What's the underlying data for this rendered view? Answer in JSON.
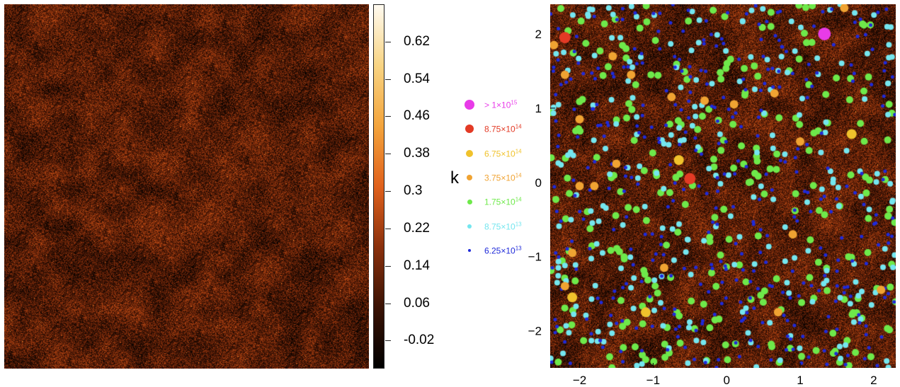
{
  "colorbar": {
    "ticks": [
      "0.62",
      "0.54",
      "0.46",
      "0.38",
      "0.3",
      "0.22",
      "0.14",
      "0.06",
      "-0.02"
    ],
    "tick_values": [
      0.62,
      0.54,
      0.46,
      0.38,
      0.3,
      0.22,
      0.14,
      0.06,
      -0.02
    ],
    "range": [
      -0.08,
      0.7
    ],
    "colors": [
      "#000000",
      "#3a1204",
      "#8a300c",
      "#e0611c",
      "#f3a43c",
      "#f8d483",
      "#fffaf0"
    ]
  },
  "k_label": "k",
  "legend": {
    "items": [
      {
        "label_base": "> 1×10",
        "exp": "15",
        "color": "#e83be8",
        "size": "large"
      },
      {
        "label_base": "8.75×10",
        "exp": "14",
        "color": "#e33a25",
        "size": "medium-large"
      },
      {
        "label_base": "6.75×10",
        "exp": "14",
        "color": "#f0c22c",
        "size": "medium"
      },
      {
        "label_base": "3.75×10",
        "exp": "14",
        "color": "#f0a332",
        "size": "medium-small"
      },
      {
        "label_base": "1.75×10",
        "exp": "14",
        "color": "#6ee94a",
        "size": "small"
      },
      {
        "label_base": "8.75×10",
        "exp": "13",
        "color": "#74e6ef",
        "size": "smaller"
      },
      {
        "label_base": "6.25×10",
        "exp": "13",
        "color": "#1f2ad9",
        "size": "tiny"
      }
    ]
  },
  "chart_data": [
    {
      "type": "heatmap",
      "title": "",
      "colormap": "black-orange-white",
      "colorbar_label": "k",
      "value_range": [
        -0.08,
        0.7
      ]
    },
    {
      "type": "scatter",
      "title": "",
      "xlabel": "",
      "ylabel": "",
      "xlim": [
        -2.4,
        2.3
      ],
      "ylim": [
        -2.5,
        2.4
      ],
      "xticks": [
        -2,
        -1,
        0,
        1,
        2
      ],
      "yticks": [
        2,
        1,
        0,
        -1,
        -2
      ],
      "xtick_labels": [
        "−2",
        "−1",
        "0",
        "1",
        "2"
      ],
      "ytick_labels": [
        "2",
        "1",
        "0",
        "−1",
        "−2"
      ],
      "background": "convergence map (same colormap as left panel)",
      "series": [
        {
          "name": "> 1×10^15",
          "points": [
            [
              1.33,
              2.0
            ]
          ]
        },
        {
          "name": "8.75×10^14",
          "points": [
            [
              -2.2,
              1.95
            ],
            [
              -0.5,
              0.05
            ]
          ]
        },
        {
          "name": "6.75×10^14",
          "points": [
            [
              1.7,
              0.65
            ],
            [
              -0.65,
              0.3
            ],
            [
              -2.1,
              -1.55
            ],
            [
              -1.1,
              -1.75
            ]
          ]
        },
        {
          "name": "3.75×10^14",
          "points": [
            [
              -2.35,
              1.85
            ],
            [
              -1.55,
              1.7
            ],
            [
              -2.2,
              1.45
            ],
            [
              -1.3,
              1.45
            ],
            [
              -0.75,
              1.15
            ],
            [
              0.1,
              1.05
            ],
            [
              0.65,
              1.2
            ],
            [
              -2.0,
              0.85
            ],
            [
              1.0,
              0.55
            ],
            [
              -1.5,
              0.25
            ],
            [
              -2.0,
              -0.05
            ],
            [
              -1.8,
              -0.05
            ],
            [
              0.9,
              -0.7
            ],
            [
              -2.1,
              -0.95
            ],
            [
              -0.85,
              -1.15
            ],
            [
              2.1,
              -1.45
            ],
            [
              -2.2,
              -1.4
            ],
            [
              0.7,
              -1.75
            ],
            [
              -0.3,
              1.1
            ],
            [
              1.6,
              2.35
            ]
          ]
        },
        {
          "name": "1.75×10^14",
          "points": []
        },
        {
          "name": "8.75×10^13",
          "points": []
        },
        {
          "name": "6.25×10^13",
          "points": []
        }
      ],
      "point_counts": {
        "1.75×10^14": 260,
        "8.75×10^13": 240,
        "6.25×10^13": 380
      }
    }
  ]
}
